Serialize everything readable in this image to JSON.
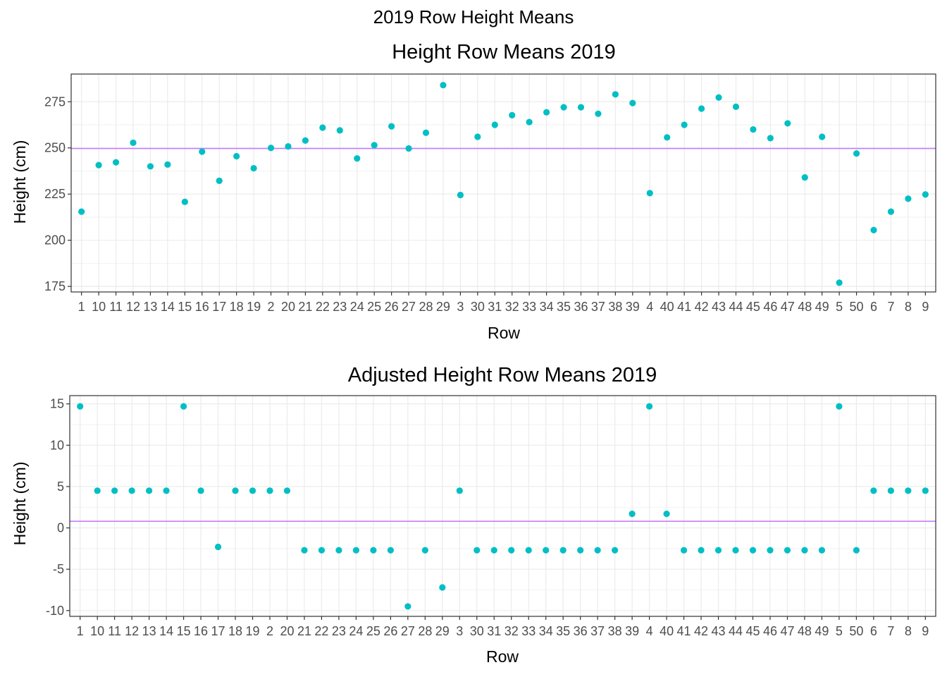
{
  "figure": {
    "title": "2019 Row Height Means"
  },
  "colors": {
    "points": "#00BFC4",
    "mean_line": "#C77CFF",
    "grid_major": "#EBEBEB",
    "grid_minor": "#F2F2F2",
    "panel_border": "#333333"
  },
  "chart_data": [
    {
      "type": "scatter",
      "title": "Height Row Means 2019",
      "xlabel": "Row",
      "ylabel": "Height (cm)",
      "categories": [
        "1",
        "10",
        "11",
        "12",
        "13",
        "14",
        "15",
        "16",
        "17",
        "18",
        "19",
        "2",
        "20",
        "21",
        "22",
        "23",
        "24",
        "25",
        "26",
        "27",
        "28",
        "29",
        "3",
        "30",
        "31",
        "32",
        "33",
        "34",
        "35",
        "36",
        "37",
        "38",
        "39",
        "4",
        "40",
        "41",
        "42",
        "43",
        "44",
        "45",
        "46",
        "47",
        "48",
        "49",
        "5",
        "50",
        "6",
        "7",
        "8",
        "9"
      ],
      "values": [
        215.5,
        240.7,
        242.2,
        252.8,
        240,
        241,
        220.8,
        248,
        232.2,
        245.5,
        239,
        250,
        250.8,
        254,
        261,
        259.5,
        244.3,
        251.5,
        261.7,
        249.7,
        258.2,
        284,
        224.5,
        256,
        262.5,
        267.7,
        264,
        269.3,
        272,
        272,
        268.5,
        279,
        274.3,
        225.5,
        255.7,
        262.5,
        271.3,
        277.3,
        272.3,
        260,
        255.3,
        263.3,
        234,
        256,
        177,
        247,
        205.5,
        215.5,
        222.5,
        224.8
      ],
      "yticks": [
        175,
        200,
        225,
        250,
        275
      ],
      "ylim": [
        172,
        290
      ],
      "hline": 249.7,
      "grid": true
    },
    {
      "type": "scatter",
      "title": "Adjusted Height Row Means 2019",
      "xlabel": "Row",
      "ylabel": "Height (cm)",
      "categories": [
        "1",
        "10",
        "11",
        "12",
        "13",
        "14",
        "15",
        "16",
        "17",
        "18",
        "19",
        "2",
        "20",
        "21",
        "22",
        "23",
        "24",
        "25",
        "26",
        "27",
        "28",
        "29",
        "3",
        "30",
        "31",
        "32",
        "33",
        "34",
        "35",
        "36",
        "37",
        "38",
        "39",
        "4",
        "40",
        "41",
        "42",
        "43",
        "44",
        "45",
        "46",
        "47",
        "48",
        "49",
        "5",
        "50",
        "6",
        "7",
        "8",
        "9"
      ],
      "values": [
        14.7,
        4.5,
        4.5,
        4.5,
        4.5,
        4.5,
        14.7,
        4.5,
        -2.3,
        4.5,
        4.5,
        4.5,
        4.5,
        -2.7,
        -2.7,
        -2.7,
        -2.7,
        -2.7,
        -2.7,
        -9.5,
        -2.7,
        -7.2,
        4.5,
        -2.7,
        -2.7,
        -2.7,
        -2.7,
        -2.7,
        -2.7,
        -2.7,
        -2.7,
        -2.7,
        1.7,
        14.7,
        1.7,
        -2.7,
        -2.7,
        -2.7,
        -2.7,
        -2.7,
        -2.7,
        -2.7,
        -2.7,
        -2.7,
        14.7,
        -2.7,
        4.5,
        4.5,
        4.5,
        4.5
      ],
      "yticks": [
        -10,
        -5,
        0,
        5,
        10,
        15
      ],
      "ylim": [
        -10.7,
        16
      ],
      "hline": 0.8,
      "grid": true
    }
  ]
}
